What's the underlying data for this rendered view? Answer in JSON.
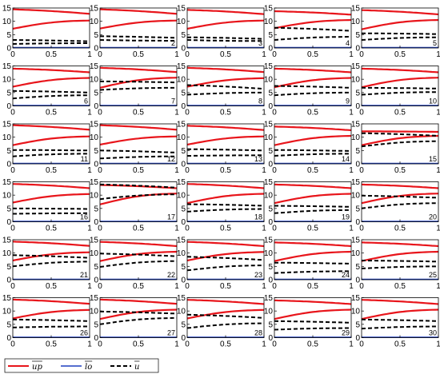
{
  "chart_data": {
    "type": "line",
    "layout": "grid of small multiples, 6 rows x 5 columns",
    "xlim": [
      0,
      1
    ],
    "ylim": [
      0,
      15
    ],
    "xticks": [
      "0",
      "0.5",
      "1"
    ],
    "yticks": [
      "0",
      "5",
      "10",
      "15"
    ],
    "legend": {
      "placement": "bottom-left",
      "entries": [
        {
          "label": "up",
          "color": "#e8151b",
          "style": "solid"
        },
        {
          "label": "lo",
          "color": "#1f3fbf",
          "style": "solid"
        },
        {
          "label": "u",
          "color": "#000000",
          "style": "dashed"
        }
      ]
    },
    "panels": [
      {
        "label": "",
        "up": [
          14.5,
          12.8
        ],
        "lo": [
          7.2,
          10.3
        ],
        "d_upper": [
          3.0,
          2.5
        ],
        "d_lower": [
          1.5,
          1.8
        ]
      },
      {
        "label": "2",
        "up": [
          14.5,
          12.8
        ],
        "lo": [
          7.3,
          10.3
        ],
        "d_upper": [
          4.4,
          3.8
        ],
        "d_lower": [
          3.0,
          2.7
        ]
      },
      {
        "label": "3",
        "up": [
          14.3,
          12.7
        ],
        "lo": [
          7.2,
          10.3
        ],
        "d_upper": [
          4.0,
          3.4
        ],
        "d_lower": [
          3.0,
          2.6
        ]
      },
      {
        "label": "4",
        "up": [
          13.8,
          12.5
        ],
        "lo": [
          7.4,
          10.5
        ],
        "d_upper": [
          7.6,
          6.4
        ],
        "d_lower": [
          3.0,
          4.2
        ]
      },
      {
        "label": "5",
        "up": [
          14.2,
          12.6
        ],
        "lo": [
          7.0,
          10.5
        ],
        "d_upper": [
          5.5,
          5.2
        ],
        "d_lower": [
          3.0,
          4.0
        ]
      },
      {
        "label": "6",
        "up": [
          14.0,
          12.6
        ],
        "lo": [
          7.2,
          10.5
        ],
        "d_upper": [
          5.6,
          5.0
        ],
        "d_lower": [
          2.8,
          4.0
        ]
      },
      {
        "label": "7",
        "up": [
          14.3,
          12.7
        ],
        "lo": [
          6.8,
          10.6
        ],
        "d_upper": [
          9.2,
          8.8
        ],
        "d_lower": [
          6.0,
          6.8
        ]
      },
      {
        "label": "8",
        "up": [
          14.3,
          12.7
        ],
        "lo": [
          7.2,
          10.4
        ],
        "d_upper": [
          7.8,
          6.4
        ],
        "d_lower": [
          4.2,
          5.0
        ]
      },
      {
        "label": "9",
        "up": [
          14.0,
          12.6
        ],
        "lo": [
          7.0,
          10.5
        ],
        "d_upper": [
          7.5,
          6.8
        ],
        "d_lower": [
          4.0,
          5.0
        ]
      },
      {
        "label": "10",
        "up": [
          14.0,
          12.6
        ],
        "lo": [
          7.0,
          10.6
        ],
        "d_upper": [
          6.8,
          6.5
        ],
        "d_lower": [
          4.2,
          5.2
        ]
      },
      {
        "label": "11",
        "up": [
          14.5,
          12.8
        ],
        "lo": [
          7.0,
          10.3
        ],
        "d_upper": [
          5.2,
          5.0
        ],
        "d_lower": [
          2.8,
          3.8
        ]
      },
      {
        "label": "12",
        "up": [
          14.5,
          12.8
        ],
        "lo": [
          7.2,
          10.3
        ],
        "d_upper": [
          5.0,
          4.2
        ],
        "d_lower": [
          2.0,
          2.8
        ]
      },
      {
        "label": "13",
        "up": [
          14.3,
          12.7
        ],
        "lo": [
          7.2,
          10.3
        ],
        "d_upper": [
          5.5,
          5.0
        ],
        "d_lower": [
          3.0,
          3.2
        ]
      },
      {
        "label": "14",
        "up": [
          14.0,
          12.6
        ],
        "lo": [
          7.0,
          10.5
        ],
        "d_upper": [
          5.2,
          4.8
        ],
        "d_lower": [
          3.0,
          3.8
        ]
      },
      {
        "label": "15",
        "up": [
          12.2,
          12.0
        ],
        "lo": [
          7.0,
          10.5
        ],
        "d_upper": [
          11.5,
          10.5
        ],
        "d_lower": [
          6.5,
          8.5
        ]
      },
      {
        "label": "16",
        "up": [
          14.2,
          12.6
        ],
        "lo": [
          7.2,
          10.4
        ],
        "d_upper": [
          5.0,
          4.8
        ],
        "d_lower": [
          3.0,
          3.2
        ]
      },
      {
        "label": "17",
        "up": [
          13.8,
          12.6
        ],
        "lo": [
          6.5,
          10.6
        ],
        "d_upper": [
          14.0,
          12.8
        ],
        "d_lower": [
          8.5,
          10.3
        ]
      },
      {
        "label": "18",
        "up": [
          14.2,
          12.6
        ],
        "lo": [
          7.0,
          10.5
        ],
        "d_upper": [
          6.6,
          6.0
        ],
        "d_lower": [
          3.8,
          4.8
        ]
      },
      {
        "label": "19",
        "up": [
          14.0,
          12.6
        ],
        "lo": [
          7.0,
          10.5
        ],
        "d_upper": [
          6.0,
          5.6
        ],
        "d_lower": [
          3.2,
          4.4
        ]
      },
      {
        "label": "20",
        "up": [
          14.0,
          12.6
        ],
        "lo": [
          7.0,
          10.6
        ],
        "d_upper": [
          9.8,
          9.0
        ],
        "d_lower": [
          5.0,
          7.0
        ]
      },
      {
        "label": "21",
        "up": [
          14.3,
          12.7
        ],
        "lo": [
          7.2,
          10.3
        ],
        "d_upper": [
          9.2,
          8.2
        ],
        "d_lower": [
          5.0,
          6.8
        ]
      },
      {
        "label": "22",
        "up": [
          14.2,
          12.6
        ],
        "lo": [
          7.0,
          10.5
        ],
        "d_upper": [
          9.8,
          8.8
        ],
        "d_lower": [
          4.8,
          7.0
        ]
      },
      {
        "label": "23",
        "up": [
          14.2,
          12.6
        ],
        "lo": [
          7.2,
          10.4
        ],
        "d_upper": [
          8.6,
          7.4
        ],
        "d_lower": [
          3.5,
          5.4
        ]
      },
      {
        "label": "24",
        "up": [
          14.0,
          12.6
        ],
        "lo": [
          7.0,
          10.5
        ],
        "d_upper": [
          6.4,
          6.0
        ],
        "d_lower": [
          2.5,
          3.2
        ]
      },
      {
        "label": "25",
        "up": [
          14.0,
          12.6
        ],
        "lo": [
          7.0,
          10.5
        ],
        "d_upper": [
          7.2,
          6.8
        ],
        "d_lower": [
          4.2,
          5.0
        ]
      },
      {
        "label": "26",
        "up": [
          14.3,
          12.7
        ],
        "lo": [
          7.2,
          10.4
        ],
        "d_upper": [
          6.8,
          6.2
        ],
        "d_lower": [
          3.8,
          4.2
        ]
      },
      {
        "label": "27",
        "up": [
          14.3,
          12.7
        ],
        "lo": [
          7.0,
          10.5
        ],
        "d_upper": [
          9.8,
          9.0
        ],
        "d_lower": [
          5.0,
          7.4
        ]
      },
      {
        "label": "28",
        "up": [
          14.2,
          12.6
        ],
        "lo": [
          7.2,
          10.4
        ],
        "d_upper": [
          8.6,
          7.4
        ],
        "d_lower": [
          3.6,
          5.4
        ]
      },
      {
        "label": "29",
        "up": [
          14.0,
          12.6
        ],
        "lo": [
          7.0,
          10.5
        ],
        "d_upper": [
          6.2,
          5.6
        ],
        "d_lower": [
          3.0,
          3.6
        ]
      },
      {
        "label": "30",
        "up": [
          14.2,
          12.6
        ],
        "lo": [
          7.0,
          10.5
        ],
        "d_upper": [
          6.8,
          6.2
        ],
        "d_lower": [
          3.4,
          4.2
        ]
      }
    ]
  }
}
